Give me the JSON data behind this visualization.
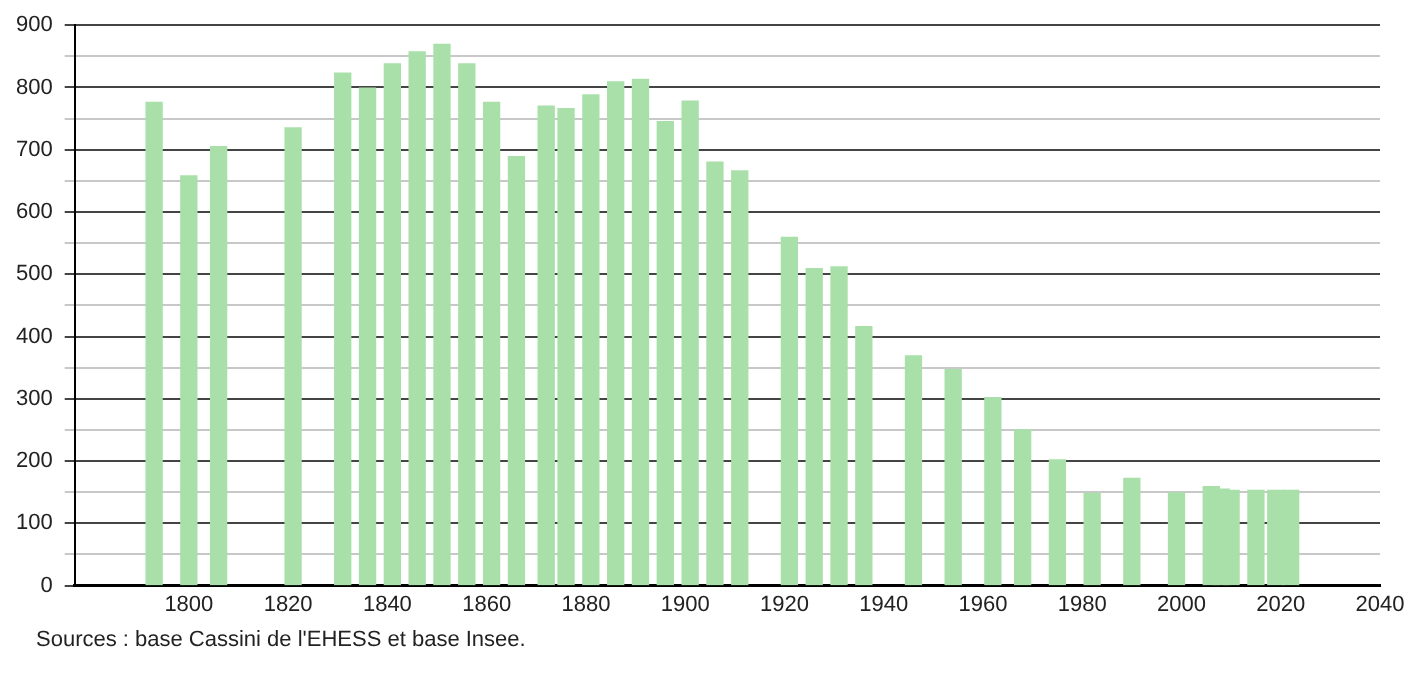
{
  "chart_data": {
    "type": "bar",
    "x": [
      1793,
      1800,
      1806,
      1821,
      1831,
      1836,
      1841,
      1846,
      1851,
      1856,
      1861,
      1866,
      1872,
      1876,
      1881,
      1886,
      1891,
      1896,
      1901,
      1906,
      1911,
      1921,
      1926,
      1931,
      1936,
      1946,
      1954,
      1962,
      1968,
      1975,
      1982,
      1990,
      1999,
      2006,
      2008,
      2010,
      2015,
      2019,
      2022
    ],
    "values": [
      776,
      658,
      705,
      735,
      823,
      799,
      838,
      857,
      869,
      838,
      776,
      689,
      770,
      766,
      788,
      809,
      813,
      745,
      778,
      680,
      666,
      559,
      509,
      512,
      416,
      369,
      347,
      302,
      250,
      202,
      148,
      172,
      149,
      159,
      155,
      153,
      153,
      153,
      153
    ],
    "color": "#a9e0a9",
    "xlim": [
      1777,
      2040
    ],
    "xticks": [
      1800,
      1820,
      1840,
      1860,
      1880,
      1900,
      1920,
      1940,
      1960,
      1980,
      2000,
      2020,
      2040
    ],
    "ylim": [
      0,
      900
    ],
    "yticks": [
      0,
      {
        "value": 50,
        "label": null
      },
      100,
      {
        "value": 150,
        "label": null
      },
      200,
      {
        "value": 250,
        "label": null
      },
      300,
      {
        "value": 350,
        "label": null
      },
      400,
      {
        "value": 450,
        "label": null
      },
      500,
      {
        "value": 550,
        "label": null
      },
      600,
      {
        "value": 650,
        "label": null
      },
      700,
      {
        "value": 750,
        "label": null
      },
      800,
      {
        "value": 850,
        "label": null
      },
      900
    ],
    "grid": "y",
    "annotations": [
      "Sources : base Cassini de l'EHESS et base Insee."
    ]
  }
}
